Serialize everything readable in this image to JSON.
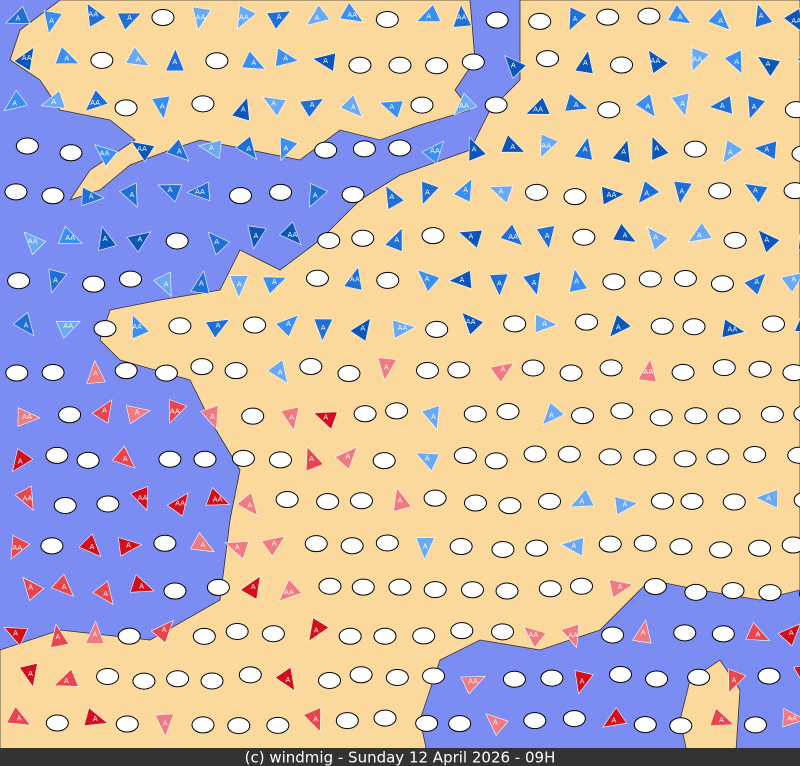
{
  "caption": "(c) windmig - Sunday 12 April 2026 - 09H",
  "marker_labels": [
    "A",
    "AA"
  ]
}
